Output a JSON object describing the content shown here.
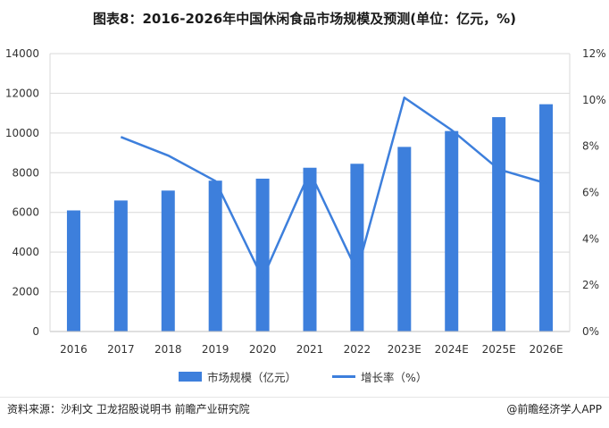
{
  "title": "图表8：2016-2026年中国休闲食品市场规模及预测(单位：亿元，%)",
  "source": "资料来源：沙利文 卫龙招股说明书 前瞻产业研究院",
  "credit": "@前瞻经济学人APP",
  "colors": {
    "series": "#3d7fdc",
    "grid": "#d9d9d9",
    "axis_text": "#333333"
  },
  "chart_data": {
    "type": "bar",
    "categories": [
      "2016",
      "2017",
      "2018",
      "2019",
      "2020",
      "2021",
      "2022",
      "2023E",
      "2024E",
      "2025E",
      "2026E"
    ],
    "series": [
      {
        "name": "市场规模（亿元）",
        "type": "bar",
        "axis": "left",
        "values": [
          6100,
          6600,
          7100,
          7600,
          7700,
          8250,
          8450,
          9300,
          10100,
          10800,
          11450
        ]
      },
      {
        "name": "增长率（%）",
        "type": "line",
        "axis": "right",
        "values": [
          null,
          8.4,
          7.6,
          6.5,
          2.3,
          6.9,
          2.6,
          10.1,
          8.7,
          7.0,
          6.4
        ]
      }
    ],
    "y_left": {
      "lim": [
        0,
        14000
      ],
      "ticks": [
        "0",
        "2000",
        "4000",
        "6000",
        "8000",
        "10000",
        "12000",
        "14000"
      ]
    },
    "y_right": {
      "lim": [
        0,
        12
      ],
      "ticks": [
        "0%",
        "2%",
        "4%",
        "6%",
        "8%",
        "10%",
        "12%"
      ]
    },
    "grid": true,
    "legend_position": "bottom"
  }
}
